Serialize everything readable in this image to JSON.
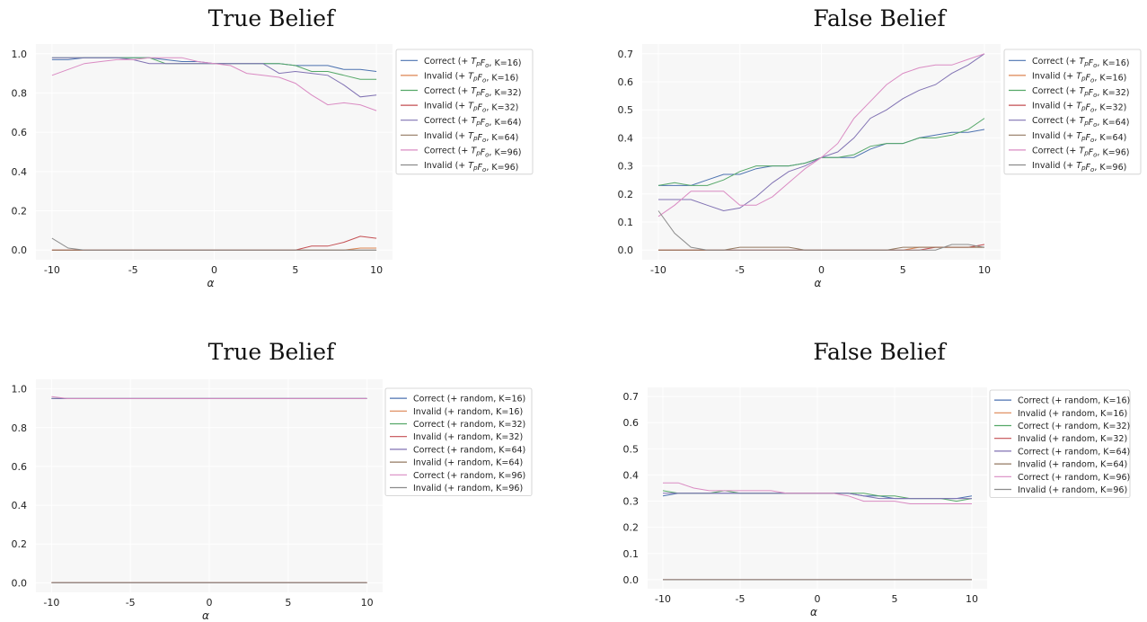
{
  "x_ticks": [
    "-10",
    "-5",
    "0",
    "5",
    "10"
  ],
  "chart_data": [
    {
      "type": "line",
      "title": "True Belief",
      "xlabel": "α",
      "ylabel": "",
      "xlim": [
        -10,
        10
      ],
      "ylim": [
        0.0,
        1.0
      ],
      "y_ticks": [
        "0.0",
        "0.2",
        "0.4",
        "0.6",
        "0.8",
        "1.0"
      ],
      "legend_position": "outside-right",
      "x": [
        -10,
        -9,
        -8,
        -7,
        -6,
        -5,
        -4,
        -3,
        -2,
        -1,
        0,
        1,
        2,
        3,
        4,
        5,
        6,
        7,
        8,
        9,
        10
      ],
      "series": [
        {
          "name": "Correct (+ T_pF_o, K=16)",
          "color": "#4c72b0",
          "values": [
            0.97,
            0.97,
            0.98,
            0.98,
            0.98,
            0.98,
            0.98,
            0.97,
            0.96,
            0.96,
            0.95,
            0.95,
            0.95,
            0.95,
            0.95,
            0.94,
            0.94,
            0.94,
            0.92,
            0.92,
            0.91
          ]
        },
        {
          "name": "Invalid (+ T_pF_o, K=16)",
          "color": "#dd8452",
          "values": [
            0,
            0,
            0,
            0,
            0,
            0,
            0,
            0,
            0,
            0,
            0,
            0,
            0,
            0,
            0,
            0,
            0,
            0,
            0,
            0.01,
            0.01
          ]
        },
        {
          "name": "Correct (+ T_pF_o, K=32)",
          "color": "#55a868",
          "values": [
            0.98,
            0.98,
            0.98,
            0.98,
            0.98,
            0.98,
            0.98,
            0.95,
            0.95,
            0.95,
            0.95,
            0.95,
            0.95,
            0.95,
            0.95,
            0.94,
            0.91,
            0.91,
            0.89,
            0.87,
            0.87
          ]
        },
        {
          "name": "Invalid (+ T_pF_o, K=32)",
          "color": "#c44e52",
          "values": [
            0,
            0,
            0,
            0,
            0,
            0,
            0,
            0,
            0,
            0,
            0,
            0,
            0,
            0,
            0,
            0,
            0.02,
            0.02,
            0.04,
            0.07,
            0.06
          ]
        },
        {
          "name": "Correct (+ T_pF_o, K=64)",
          "color": "#8172b3",
          "values": [
            0.98,
            0.98,
            0.98,
            0.98,
            0.98,
            0.97,
            0.95,
            0.95,
            0.95,
            0.95,
            0.95,
            0.95,
            0.95,
            0.95,
            0.9,
            0.91,
            0.9,
            0.89,
            0.84,
            0.78,
            0.79
          ]
        },
        {
          "name": "Invalid (+ T_pF_o, K=64)",
          "color": "#937860",
          "values": [
            0,
            0,
            0,
            0,
            0,
            0,
            0,
            0,
            0,
            0,
            0,
            0,
            0,
            0,
            0,
            0,
            0,
            0,
            0,
            0,
            0
          ]
        },
        {
          "name": "Correct (+ T_pF_o, K=96)",
          "color": "#da8bc3",
          "values": [
            0.89,
            0.92,
            0.95,
            0.96,
            0.97,
            0.97,
            0.98,
            0.98,
            0.98,
            0.96,
            0.95,
            0.94,
            0.9,
            0.89,
            0.88,
            0.85,
            0.79,
            0.74,
            0.75,
            0.74,
            0.71
          ]
        },
        {
          "name": "Invalid (+ T_pF_o, K=96)",
          "color": "#8c8c8c",
          "values": [
            0.06,
            0.01,
            0,
            0,
            0,
            0,
            0,
            0,
            0,
            0,
            0,
            0,
            0,
            0,
            0,
            0,
            0,
            0,
            0,
            0,
            0
          ]
        }
      ]
    },
    {
      "type": "line",
      "title": "False Belief",
      "xlabel": "α",
      "ylabel": "",
      "xlim": [
        -10,
        10
      ],
      "ylim": [
        0.0,
        0.7
      ],
      "y_ticks": [
        "0.0",
        "0.1",
        "0.2",
        "0.3",
        "0.4",
        "0.5",
        "0.6",
        "0.7"
      ],
      "legend_position": "outside-right",
      "x": [
        -10,
        -9,
        -8,
        -7,
        -6,
        -5,
        -4,
        -3,
        -2,
        -1,
        0,
        1,
        2,
        3,
        4,
        5,
        6,
        7,
        8,
        9,
        10
      ],
      "series": [
        {
          "name": "Correct (+ T_pF_o, K=16)",
          "color": "#4c72b0",
          "values": [
            0.23,
            0.23,
            0.23,
            0.25,
            0.27,
            0.27,
            0.29,
            0.3,
            0.3,
            0.31,
            0.33,
            0.33,
            0.33,
            0.36,
            0.38,
            0.38,
            0.4,
            0.41,
            0.42,
            0.42,
            0.43
          ]
        },
        {
          "name": "Invalid (+ T_pF_o, K=16)",
          "color": "#dd8452",
          "values": [
            0,
            0,
            0,
            0,
            0,
            0,
            0,
            0,
            0,
            0,
            0,
            0,
            0,
            0,
            0,
            0,
            0.01,
            0.01,
            0.01,
            0.01,
            0.01
          ]
        },
        {
          "name": "Correct (+ T_pF_o, K=32)",
          "color": "#55a868",
          "values": [
            0.23,
            0.24,
            0.23,
            0.23,
            0.25,
            0.28,
            0.3,
            0.3,
            0.3,
            0.31,
            0.33,
            0.33,
            0.34,
            0.37,
            0.38,
            0.38,
            0.4,
            0.4,
            0.41,
            0.43,
            0.47
          ]
        },
        {
          "name": "Invalid (+ T_pF_o, K=32)",
          "color": "#c44e52",
          "values": [
            0,
            0,
            0,
            0,
            0,
            0,
            0,
            0,
            0,
            0,
            0,
            0,
            0,
            0,
            0,
            0,
            0,
            0.01,
            0.01,
            0.01,
            0.02
          ]
        },
        {
          "name": "Correct (+ T_pF_o, K=64)",
          "color": "#8172b3",
          "values": [
            0.18,
            0.18,
            0.18,
            0.16,
            0.14,
            0.15,
            0.19,
            0.24,
            0.28,
            0.3,
            0.33,
            0.35,
            0.4,
            0.47,
            0.5,
            0.54,
            0.57,
            0.59,
            0.63,
            0.66,
            0.7
          ]
        },
        {
          "name": "Invalid (+ T_pF_o, K=64)",
          "color": "#937860",
          "values": [
            0,
            0,
            0,
            0,
            0,
            0.01,
            0.01,
            0.01,
            0.01,
            0,
            0,
            0,
            0,
            0,
            0,
            0.01,
            0.01,
            0.01,
            0.01,
            0.01,
            0.01
          ]
        },
        {
          "name": "Correct (+ T_pF_o, K=96)",
          "color": "#da8bc3",
          "values": [
            0.12,
            0.16,
            0.21,
            0.21,
            0.21,
            0.16,
            0.16,
            0.19,
            0.24,
            0.29,
            0.33,
            0.38,
            0.47,
            0.53,
            0.59,
            0.63,
            0.65,
            0.66,
            0.66,
            0.68,
            0.7
          ]
        },
        {
          "name": "Invalid (+ T_pF_o, K=96)",
          "color": "#8c8c8c",
          "values": [
            0.14,
            0.06,
            0.01,
            0,
            0,
            0,
            0,
            0,
            0,
            0,
            0,
            0,
            0,
            0,
            0,
            0,
            0,
            0,
            0.02,
            0.02,
            0.01
          ]
        }
      ]
    },
    {
      "type": "line",
      "title": "True Belief",
      "xlabel": "α",
      "ylabel": "",
      "xlim": [
        -10,
        10
      ],
      "ylim": [
        0.0,
        1.0
      ],
      "y_ticks": [
        "0.0",
        "0.2",
        "0.4",
        "0.6",
        "0.8",
        "1.0"
      ],
      "legend_position": "outside-right",
      "x": [
        -10,
        -9,
        -8,
        -7,
        -6,
        -5,
        -4,
        -3,
        -2,
        -1,
        0,
        1,
        2,
        3,
        4,
        5,
        6,
        7,
        8,
        9,
        10
      ],
      "series": [
        {
          "name": "Correct (+ random, K=16)",
          "color": "#4c72b0",
          "values": [
            0.95,
            0.95,
            0.95,
            0.95,
            0.95,
            0.95,
            0.95,
            0.95,
            0.95,
            0.95,
            0.95,
            0.95,
            0.95,
            0.95,
            0.95,
            0.95,
            0.95,
            0.95,
            0.95,
            0.95,
            0.95
          ]
        },
        {
          "name": "Invalid (+ random, K=16)",
          "color": "#dd8452",
          "values": [
            0,
            0,
            0,
            0,
            0,
            0,
            0,
            0,
            0,
            0,
            0,
            0,
            0,
            0,
            0,
            0,
            0,
            0,
            0,
            0,
            0
          ]
        },
        {
          "name": "Correct (+ random, K=32)",
          "color": "#55a868",
          "values": [
            0.95,
            0.95,
            0.95,
            0.95,
            0.95,
            0.95,
            0.95,
            0.95,
            0.95,
            0.95,
            0.95,
            0.95,
            0.95,
            0.95,
            0.95,
            0.95,
            0.95,
            0.95,
            0.95,
            0.95,
            0.95
          ]
        },
        {
          "name": "Invalid (+ random, K=32)",
          "color": "#c44e52",
          "values": [
            0,
            0,
            0,
            0,
            0,
            0,
            0,
            0,
            0,
            0,
            0,
            0,
            0,
            0,
            0,
            0,
            0,
            0,
            0,
            0,
            0
          ]
        },
        {
          "name": "Correct (+ random, K=64)",
          "color": "#8172b3",
          "values": [
            0.95,
            0.95,
            0.95,
            0.95,
            0.95,
            0.95,
            0.95,
            0.95,
            0.95,
            0.95,
            0.95,
            0.95,
            0.95,
            0.95,
            0.95,
            0.95,
            0.95,
            0.95,
            0.95,
            0.95,
            0.95
          ]
        },
        {
          "name": "Invalid (+ random, K=64)",
          "color": "#937860",
          "values": [
            0,
            0,
            0,
            0,
            0,
            0,
            0,
            0,
            0,
            0,
            0,
            0,
            0,
            0,
            0,
            0,
            0,
            0,
            0,
            0,
            0
          ]
        },
        {
          "name": "Correct (+ random, K=96)",
          "color": "#da8bc3",
          "values": [
            0.96,
            0.95,
            0.95,
            0.95,
            0.95,
            0.95,
            0.95,
            0.95,
            0.95,
            0.95,
            0.95,
            0.95,
            0.95,
            0.95,
            0.95,
            0.95,
            0.95,
            0.95,
            0.95,
            0.95,
            0.95
          ]
        },
        {
          "name": "Invalid (+ random, K=96)",
          "color": "#8c8c8c",
          "values": [
            0,
            0,
            0,
            0,
            0,
            0,
            0,
            0,
            0,
            0,
            0,
            0,
            0,
            0,
            0,
            0,
            0,
            0,
            0,
            0,
            0
          ]
        }
      ]
    },
    {
      "type": "line",
      "title": "False Belief",
      "xlabel": "α",
      "ylabel": "",
      "xlim": [
        -10,
        10
      ],
      "ylim": [
        0.0,
        0.7
      ],
      "y_ticks": [
        "0.0",
        "0.1",
        "0.2",
        "0.3",
        "0.4",
        "0.5",
        "0.6",
        "0.7"
      ],
      "legend_position": "outside-right",
      "x": [
        -10,
        -9,
        -8,
        -7,
        -6,
        -5,
        -4,
        -3,
        -2,
        -1,
        0,
        1,
        2,
        3,
        4,
        5,
        6,
        7,
        8,
        9,
        10
      ],
      "series": [
        {
          "name": "Correct (+ random, K=16)",
          "color": "#4c72b0",
          "values": [
            0.32,
            0.33,
            0.33,
            0.33,
            0.33,
            0.33,
            0.33,
            0.33,
            0.33,
            0.33,
            0.33,
            0.33,
            0.33,
            0.32,
            0.32,
            0.31,
            0.31,
            0.31,
            0.31,
            0.31,
            0.32
          ]
        },
        {
          "name": "Invalid (+ random, K=16)",
          "color": "#dd8452",
          "values": [
            0,
            0,
            0,
            0,
            0,
            0,
            0,
            0,
            0,
            0,
            0,
            0,
            0,
            0,
            0,
            0,
            0,
            0,
            0,
            0,
            0
          ]
        },
        {
          "name": "Correct (+ random, K=32)",
          "color": "#55a868",
          "values": [
            0.34,
            0.33,
            0.33,
            0.33,
            0.34,
            0.33,
            0.33,
            0.33,
            0.33,
            0.33,
            0.33,
            0.33,
            0.33,
            0.33,
            0.32,
            0.32,
            0.31,
            0.31,
            0.31,
            0.3,
            0.31
          ]
        },
        {
          "name": "Invalid (+ random, K=32)",
          "color": "#c44e52",
          "values": [
            0,
            0,
            0,
            0,
            0,
            0,
            0,
            0,
            0,
            0,
            0,
            0,
            0,
            0,
            0,
            0,
            0,
            0,
            0,
            0,
            0
          ]
        },
        {
          "name": "Correct (+ random, K=64)",
          "color": "#8172b3",
          "values": [
            0.33,
            0.33,
            0.33,
            0.33,
            0.33,
            0.33,
            0.33,
            0.33,
            0.33,
            0.33,
            0.33,
            0.33,
            0.33,
            0.32,
            0.31,
            0.31,
            0.31,
            0.31,
            0.31,
            0.31,
            0.31
          ]
        },
        {
          "name": "Invalid (+ random, K=64)",
          "color": "#937860",
          "values": [
            0,
            0,
            0,
            0,
            0,
            0,
            0,
            0,
            0,
            0,
            0,
            0,
            0,
            0,
            0,
            0,
            0,
            0,
            0,
            0,
            0
          ]
        },
        {
          "name": "Correct (+ random, K=96)",
          "color": "#da8bc3",
          "values": [
            0.37,
            0.37,
            0.35,
            0.34,
            0.34,
            0.34,
            0.34,
            0.34,
            0.33,
            0.33,
            0.33,
            0.33,
            0.32,
            0.3,
            0.3,
            0.3,
            0.29,
            0.29,
            0.29,
            0.29,
            0.29
          ]
        },
        {
          "name": "Invalid (+ random, K=96)",
          "color": "#8c8c8c",
          "values": [
            0,
            0,
            0,
            0,
            0,
            0,
            0,
            0,
            0,
            0,
            0,
            0,
            0,
            0,
            0,
            0,
            0,
            0,
            0,
            0,
            0
          ]
        }
      ]
    }
  ]
}
